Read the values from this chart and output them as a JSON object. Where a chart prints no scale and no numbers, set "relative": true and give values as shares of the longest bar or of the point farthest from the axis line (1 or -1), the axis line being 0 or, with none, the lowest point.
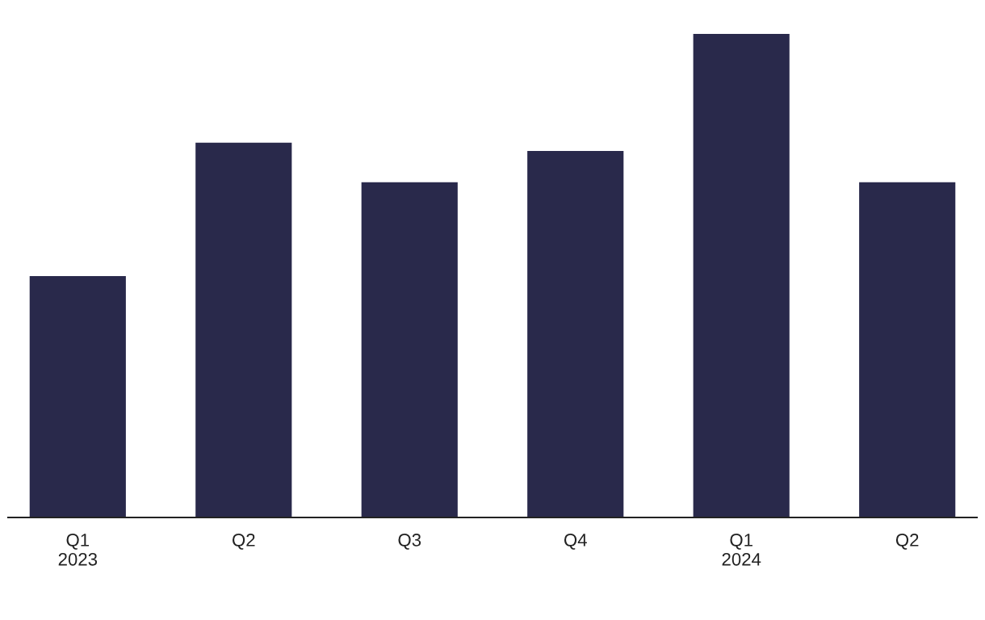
{
  "chart_data": {
    "type": "bar",
    "relative": true,
    "categories": [
      "Q1\n2023",
      "Q2",
      "Q3",
      "Q4",
      "Q1\n2024",
      "Q2"
    ],
    "values": [
      0.499,
      0.775,
      0.693,
      0.758,
      1,
      0.693
    ],
    "color": "#29294b",
    "grid": false,
    "legend": false
  }
}
